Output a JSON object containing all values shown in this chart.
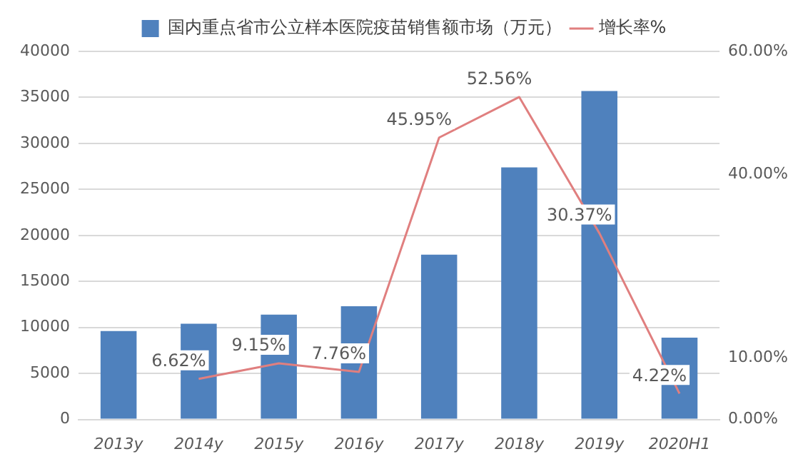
{
  "chart_data": {
    "type": "bar",
    "categories": [
      "2013y",
      "2014y",
      "2015y",
      "2016y",
      "2017y",
      "2018y",
      "2019y",
      "2020H1"
    ],
    "series": [
      {
        "name": "国内重点省市公立样本医院疫苗销售额市场（万元）",
        "color": "#4f81bd",
        "values": [
          9600,
          10400,
          11400,
          12300,
          17900,
          27400,
          35700,
          8900
        ]
      },
      {
        "name": "增长率%",
        "type": "line",
        "axis": "y2",
        "color": "#e07f7f",
        "values": [
          null,
          6.62,
          9.15,
          7.76,
          45.95,
          52.56,
          30.37,
          4.22
        ],
        "value_labels": [
          null,
          "6.62%",
          "9.15%",
          "7.76%",
          "45.95%",
          "52.56%",
          "30.37%",
          "4.22%"
        ]
      }
    ],
    "ylim": [
      0,
      40000
    ],
    "yticks": [
      0,
      5000,
      10000,
      15000,
      20000,
      25000,
      30000,
      35000,
      40000
    ],
    "y2lim": [
      0,
      60
    ],
    "y2ticks": [
      {
        "value": 0,
        "label": "0.00%"
      },
      {
        "value": 10,
        "label": "10.00%"
      },
      {
        "value": 40,
        "label": "40.00%"
      },
      {
        "value": 60,
        "label": "60.00%"
      }
    ],
    "grid": "y",
    "legend": "top",
    "marker": "none"
  }
}
